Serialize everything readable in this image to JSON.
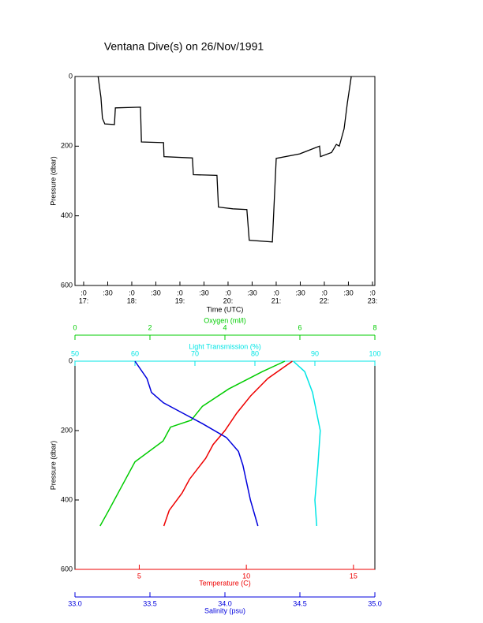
{
  "title": "Ventana Dive(s) on 26/Nov/1991",
  "chart_data": [
    {
      "type": "line",
      "ylabel": "Pressure (dbar)",
      "xlabel": "Time (UTC)",
      "xlim": [
        16.82,
        23.05
      ],
      "ylim": [
        600,
        0
      ],
      "yticks": [
        0,
        200,
        400,
        600
      ],
      "xticks": [
        {
          "value": 17,
          "label": ":0"
        },
        {
          "value": 17.5,
          "label": ":30"
        },
        {
          "value": 18,
          "label": ":0"
        },
        {
          "value": 18.5,
          "label": ":30"
        },
        {
          "value": 19,
          "label": ":0"
        },
        {
          "value": 19.5,
          "label": ":30"
        },
        {
          "value": 20,
          "label": ":0"
        },
        {
          "value": 20.5,
          "label": ":30"
        },
        {
          "value": 21,
          "label": ":0"
        },
        {
          "value": 21.5,
          "label": ":30"
        },
        {
          "value": 22,
          "label": ":0"
        },
        {
          "value": 22.5,
          "label": ":30"
        },
        {
          "value": 23,
          "label": ":0"
        }
      ],
      "xticks_hours": [
        {
          "value": 17,
          "label": "17:"
        },
        {
          "value": 18,
          "label": "18:"
        },
        {
          "value": 19,
          "label": "19:"
        },
        {
          "value": 20,
          "label": "20:"
        },
        {
          "value": 21,
          "label": "21:"
        },
        {
          "value": 22,
          "label": "22:"
        },
        {
          "value": 23,
          "label": "23:"
        }
      ],
      "series": [
        {
          "color": "#000000",
          "x": [
            17.3,
            17.36,
            17.39,
            17.44,
            17.64,
            17.66,
            18.18,
            18.2,
            18.66,
            18.67,
            19.26,
            19.28,
            19.77,
            19.8,
            20.1,
            20.39,
            20.44,
            20.92,
            21.0,
            21.49,
            21.9,
            21.92,
            22.15,
            22.25,
            22.31,
            22.41,
            22.48,
            22.56
          ],
          "values": [
            0,
            60,
            120,
            136,
            138,
            90,
            88,
            188,
            190,
            230,
            234,
            282,
            284,
            375,
            380,
            382,
            470,
            475,
            235,
            222,
            200,
            230,
            218,
            195,
            200,
            150,
            75,
            0
          ]
        }
      ]
    },
    {
      "type": "profile",
      "ylabel": "Pressure (dbar)",
      "ylim": [
        600,
        0
      ],
      "yticks": [
        0,
        200,
        400,
        600
      ],
      "x_axes": [
        {
          "label": "Oxygen (ml/l)",
          "color": "#00cc00",
          "lim": [
            0,
            8
          ],
          "ticks": [
            0,
            2,
            4,
            6,
            8
          ]
        },
        {
          "label": "Light Transmission (%)",
          "color": "#00e5e5",
          "lim": [
            50,
            100
          ],
          "ticks": [
            50,
            60,
            70,
            80,
            90,
            100
          ]
        },
        {
          "label": "Temperature (C)",
          "color": "#ee0000",
          "lim": [
            2,
            16
          ],
          "ticks": [
            5,
            10,
            15
          ]
        },
        {
          "label": "Salinity (psu)",
          "color": "#0000dd",
          "lim": [
            33,
            35
          ],
          "ticks": [
            {
              "value": 33,
              "label": "33.0"
            },
            {
              "value": 33.5,
              "label": "33.5"
            },
            {
              "value": 34,
              "label": "34.0"
            },
            {
              "value": 34.5,
              "label": "34.5"
            },
            {
              "value": 35,
              "label": "35.0"
            }
          ]
        }
      ],
      "series": [
        {
          "axis": 0,
          "color": "#00cc00",
          "x": [
            5.6,
            5.0,
            4.1,
            3.4,
            3.1,
            2.55,
            2.35,
            1.6,
            1.2,
            0.9,
            0.67
          ],
          "values": [
            0,
            30,
            80,
            130,
            170,
            190,
            230,
            290,
            370,
            430,
            475
          ]
        },
        {
          "axis": 1,
          "color": "#00e5e5",
          "x": [
            86.4,
            88.3,
            89.6,
            90.9,
            90.5,
            90.0,
            90.3
          ],
          "values": [
            0,
            30,
            90,
            200,
            300,
            400,
            475
          ]
        },
        {
          "axis": 2,
          "color": "#ee0000",
          "x": [
            12.15,
            11.0,
            10.2,
            9.55,
            9.0,
            8.45,
            8.1,
            7.35,
            7.0,
            6.4,
            6.15
          ],
          "values": [
            0,
            50,
            100,
            150,
            200,
            240,
            280,
            340,
            380,
            430,
            475
          ]
        },
        {
          "axis": 3,
          "color": "#0000dd",
          "x": [
            33.4,
            33.48,
            33.51,
            33.59,
            33.72,
            33.85,
            34.01,
            34.09,
            34.12,
            34.17,
            34.22
          ],
          "values": [
            0,
            50,
            90,
            120,
            150,
            180,
            220,
            260,
            300,
            400,
            475
          ]
        }
      ]
    }
  ]
}
